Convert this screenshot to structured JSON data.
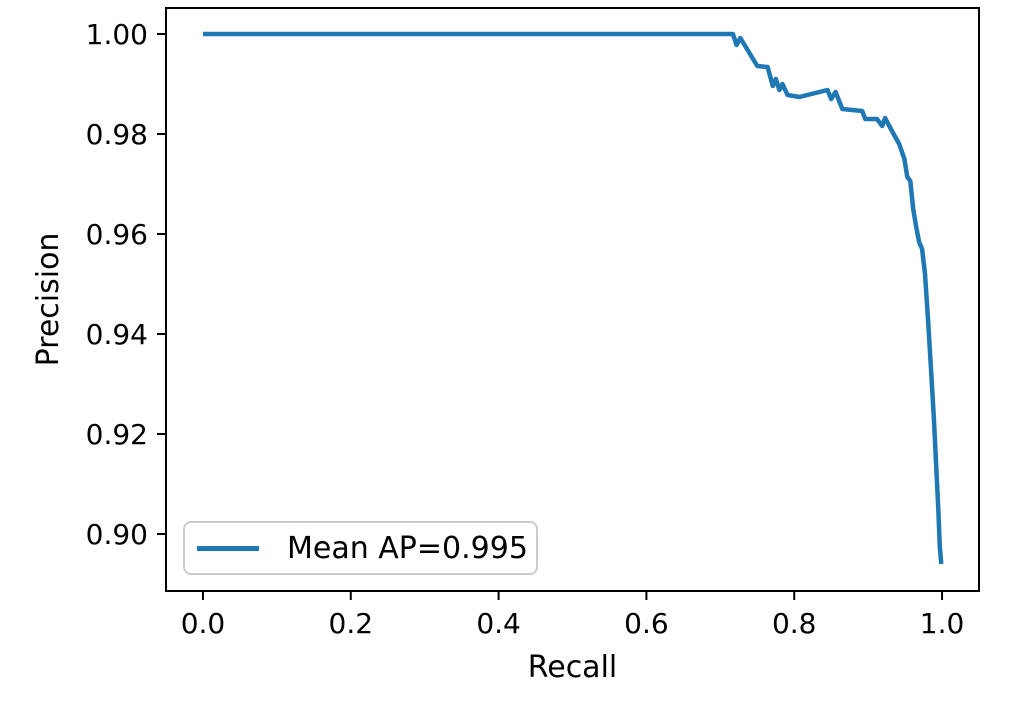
{
  "chart_data": {
    "type": "line",
    "title": "",
    "xlabel": "Recall",
    "ylabel": "Precision",
    "xlim": [
      -0.05,
      1.05
    ],
    "ylim": [
      0.8886,
      1.0052
    ],
    "grid": false,
    "x_tick_values": [
      0.0,
      0.2,
      0.4,
      0.6,
      0.8,
      1.0
    ],
    "x_tick_labels": [
      "0.0",
      "0.2",
      "0.4",
      "0.6",
      "0.8",
      "1.0"
    ],
    "y_tick_values": [
      0.9,
      0.92,
      0.94,
      0.96,
      0.98,
      1.0
    ],
    "y_tick_labels": [
      "0.90",
      "0.92",
      "0.94",
      "0.96",
      "0.98",
      "1.00"
    ],
    "legend": {
      "position": "lower left",
      "entries": [
        {
          "label": "Mean AP=0.995",
          "color": "#1f77b4"
        }
      ]
    },
    "colors": {
      "line": "#1f77b4",
      "axis": "#000000",
      "text": "#000000",
      "legend_border": "#cccccc",
      "background": "#ffffff"
    },
    "series": [
      {
        "name": "Mean AP=0.995",
        "mean_ap": 0.995,
        "points": [
          [
            0.0,
            1.0
          ],
          [
            0.717,
            1.0
          ],
          [
            0.722,
            0.9978
          ],
          [
            0.727,
            0.9992
          ],
          [
            0.75,
            0.9936
          ],
          [
            0.764,
            0.9934
          ],
          [
            0.771,
            0.9896
          ],
          [
            0.775,
            0.991
          ],
          [
            0.78,
            0.9888
          ],
          [
            0.784,
            0.99
          ],
          [
            0.791,
            0.9878
          ],
          [
            0.807,
            0.9874
          ],
          [
            0.845,
            0.9888
          ],
          [
            0.85,
            0.987
          ],
          [
            0.856,
            0.9884
          ],
          [
            0.865,
            0.985
          ],
          [
            0.892,
            0.9846
          ],
          [
            0.896,
            0.983
          ],
          [
            0.912,
            0.983
          ],
          [
            0.919,
            0.9816
          ],
          [
            0.923,
            0.9832
          ],
          [
            0.933,
            0.9804
          ],
          [
            0.942,
            0.978
          ],
          [
            0.949,
            0.975
          ],
          [
            0.953,
            0.9714
          ],
          [
            0.957,
            0.9706
          ],
          [
            0.961,
            0.965
          ],
          [
            0.965,
            0.9614
          ],
          [
            0.969,
            0.9584
          ],
          [
            0.973,
            0.957
          ],
          [
            0.977,
            0.952
          ],
          [
            0.981,
            0.943
          ],
          [
            0.985,
            0.933
          ],
          [
            0.989,
            0.923
          ],
          [
            0.992,
            0.914
          ],
          [
            0.995,
            0.905
          ],
          [
            0.997,
            0.8974
          ],
          [
            0.999,
            0.894
          ]
        ]
      }
    ]
  }
}
